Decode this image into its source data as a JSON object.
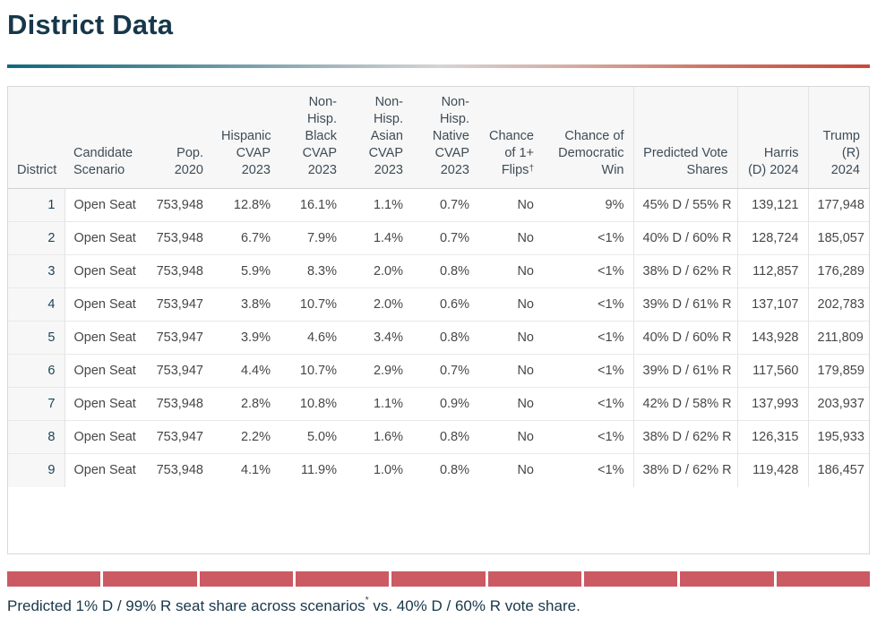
{
  "page": {
    "title": "District Data"
  },
  "colors": {
    "title_navy": "#17374a",
    "gradient_left_teal": "#12687e",
    "gradient_right_red": "#c84a3a",
    "seat_bar_red": "#cb5a62"
  },
  "table": {
    "columns": [
      {
        "label": "District"
      },
      {
        "label": "Candidate\nScenario"
      },
      {
        "label": "Pop.\n2020"
      },
      {
        "label": "Hispanic\nCVAP\n2023"
      },
      {
        "label": "Non-\nHisp.\nBlack\nCVAP\n2023"
      },
      {
        "label": "Non-\nHisp.\nAsian\nCVAP\n2023"
      },
      {
        "label": "Non-\nHisp.\nNative\nCVAP\n2023"
      },
      {
        "label": "Chance\nof 1+\nFlips",
        "sup": "†"
      },
      {
        "label": "Chance of\nDemocratic\nWin"
      },
      {
        "label": "Predicted Vote\nShares"
      },
      {
        "label": "Harris\n(D) 2024"
      },
      {
        "label": "Trump\n(R) 2024"
      }
    ],
    "rows": [
      {
        "district": "1",
        "scenario": "Open Seat",
        "pop": "753,948",
        "hispanic": "12.8%",
        "black": "16.1%",
        "asian": "1.1%",
        "native": "0.7%",
        "flips": "No",
        "dem_win": "9%",
        "vote_shares": "45% D / 55% R",
        "harris": "139,121",
        "trump": "177,948"
      },
      {
        "district": "2",
        "scenario": "Open Seat",
        "pop": "753,948",
        "hispanic": "6.7%",
        "black": "7.9%",
        "asian": "1.4%",
        "native": "0.7%",
        "flips": "No",
        "dem_win": "<1%",
        "vote_shares": "40% D / 60% R",
        "harris": "128,724",
        "trump": "185,057"
      },
      {
        "district": "3",
        "scenario": "Open Seat",
        "pop": "753,948",
        "hispanic": "5.9%",
        "black": "8.3%",
        "asian": "2.0%",
        "native": "0.8%",
        "flips": "No",
        "dem_win": "<1%",
        "vote_shares": "38% D / 62% R",
        "harris": "112,857",
        "trump": "176,289"
      },
      {
        "district": "4",
        "scenario": "Open Seat",
        "pop": "753,947",
        "hispanic": "3.8%",
        "black": "10.7%",
        "asian": "2.0%",
        "native": "0.6%",
        "flips": "No",
        "dem_win": "<1%",
        "vote_shares": "39% D / 61% R",
        "harris": "137,107",
        "trump": "202,783"
      },
      {
        "district": "5",
        "scenario": "Open Seat",
        "pop": "753,947",
        "hispanic": "3.9%",
        "black": "4.6%",
        "asian": "3.4%",
        "native": "0.8%",
        "flips": "No",
        "dem_win": "<1%",
        "vote_shares": "40% D / 60% R",
        "harris": "143,928",
        "trump": "211,809"
      },
      {
        "district": "6",
        "scenario": "Open Seat",
        "pop": "753,947",
        "hispanic": "4.4%",
        "black": "10.7%",
        "asian": "2.9%",
        "native": "0.7%",
        "flips": "No",
        "dem_win": "<1%",
        "vote_shares": "39% D / 61% R",
        "harris": "117,560",
        "trump": "179,859"
      },
      {
        "district": "7",
        "scenario": "Open Seat",
        "pop": "753,948",
        "hispanic": "2.8%",
        "black": "10.8%",
        "asian": "1.1%",
        "native": "0.9%",
        "flips": "No",
        "dem_win": "<1%",
        "vote_shares": "42% D / 58% R",
        "harris": "137,993",
        "trump": "203,937"
      },
      {
        "district": "8",
        "scenario": "Open Seat",
        "pop": "753,947",
        "hispanic": "2.2%",
        "black": "5.0%",
        "asian": "1.6%",
        "native": "0.8%",
        "flips": "No",
        "dem_win": "<1%",
        "vote_shares": "38% D / 62% R",
        "harris": "126,315",
        "trump": "195,933"
      },
      {
        "district": "9",
        "scenario": "Open Seat",
        "pop": "753,948",
        "hispanic": "4.1%",
        "black": "11.9%",
        "asian": "1.0%",
        "native": "0.8%",
        "flips": "No",
        "dem_win": "<1%",
        "vote_shares": "38% D / 62% R",
        "harris": "119,428",
        "trump": "186,457"
      }
    ]
  },
  "seat_bar": {
    "segments": 9,
    "color": "#cb5a62"
  },
  "footer": {
    "text": "Predicted 1% D / 99% R seat share across scenarios",
    "sup": "*",
    "text2": " vs. 40% D / 60% R vote share."
  }
}
